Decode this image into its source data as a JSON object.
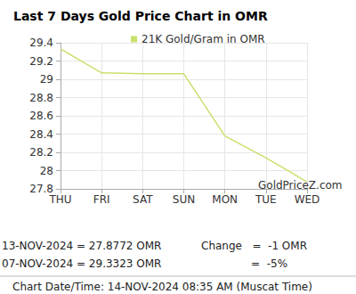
{
  "chart_data": {
    "type": "line",
    "title": "Last 7 Days Gold Price Chart in OMR",
    "categories": [
      "THU",
      "FRI",
      "SAT",
      "SUN",
      "MON",
      "TUE",
      "WED"
    ],
    "series": [
      {
        "name": "21K Gold/Gram in OMR",
        "color": "#c8e06c",
        "values": [
          29.3323,
          29.07,
          29.06,
          29.06,
          28.38,
          28.14,
          27.8772
        ]
      }
    ],
    "ylim": [
      27.8,
      29.4
    ],
    "yticks": [
      27.8,
      28,
      28.2,
      28.4,
      28.6,
      28.8,
      29,
      29.2,
      29.4
    ],
    "grid": true,
    "legend": "top",
    "annotations": [
      "GoldPriceZ.com",
      "13-NOV-2024 = 27.8772 OMR",
      "07-NOV-2024 = 29.3323 OMR",
      "Change   =  -1 OMR",
      "=  -5%",
      "Chart Date/Time: 14-NOV-2024 08:35 AM (Muscat Time)"
    ]
  }
}
